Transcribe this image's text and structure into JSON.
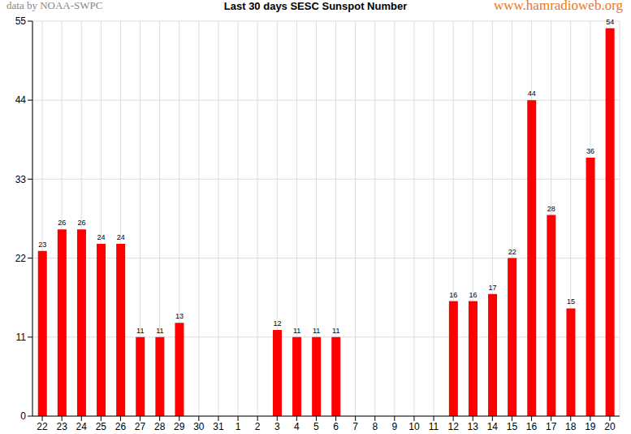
{
  "chart_data": {
    "type": "bar",
    "title": "Last 30 days SESC Sunspot Number",
    "annotations": [
      "data by NOAA-SWPC",
      "www.hamradioweb.org"
    ],
    "categories": [
      "22",
      "23",
      "24",
      "25",
      "26",
      "27",
      "28",
      "29",
      "30",
      "31",
      "1",
      "2",
      "3",
      "4",
      "5",
      "6",
      "7",
      "8",
      "9",
      "10",
      "11",
      "12",
      "13",
      "14",
      "15",
      "16",
      "17",
      "18",
      "19",
      "20"
    ],
    "values": [
      23,
      26,
      26,
      24,
      24,
      11,
      11,
      13,
      0,
      0,
      0,
      0,
      12,
      11,
      11,
      11,
      0,
      0,
      0,
      0,
      0,
      16,
      16,
      17,
      22,
      44,
      28,
      15,
      36,
      54
    ],
    "color": "#ff0000",
    "ylim": [
      0,
      55
    ],
    "yticks": [
      0,
      11,
      22,
      33,
      44,
      55
    ],
    "grid": true,
    "data_labels": true
  }
}
